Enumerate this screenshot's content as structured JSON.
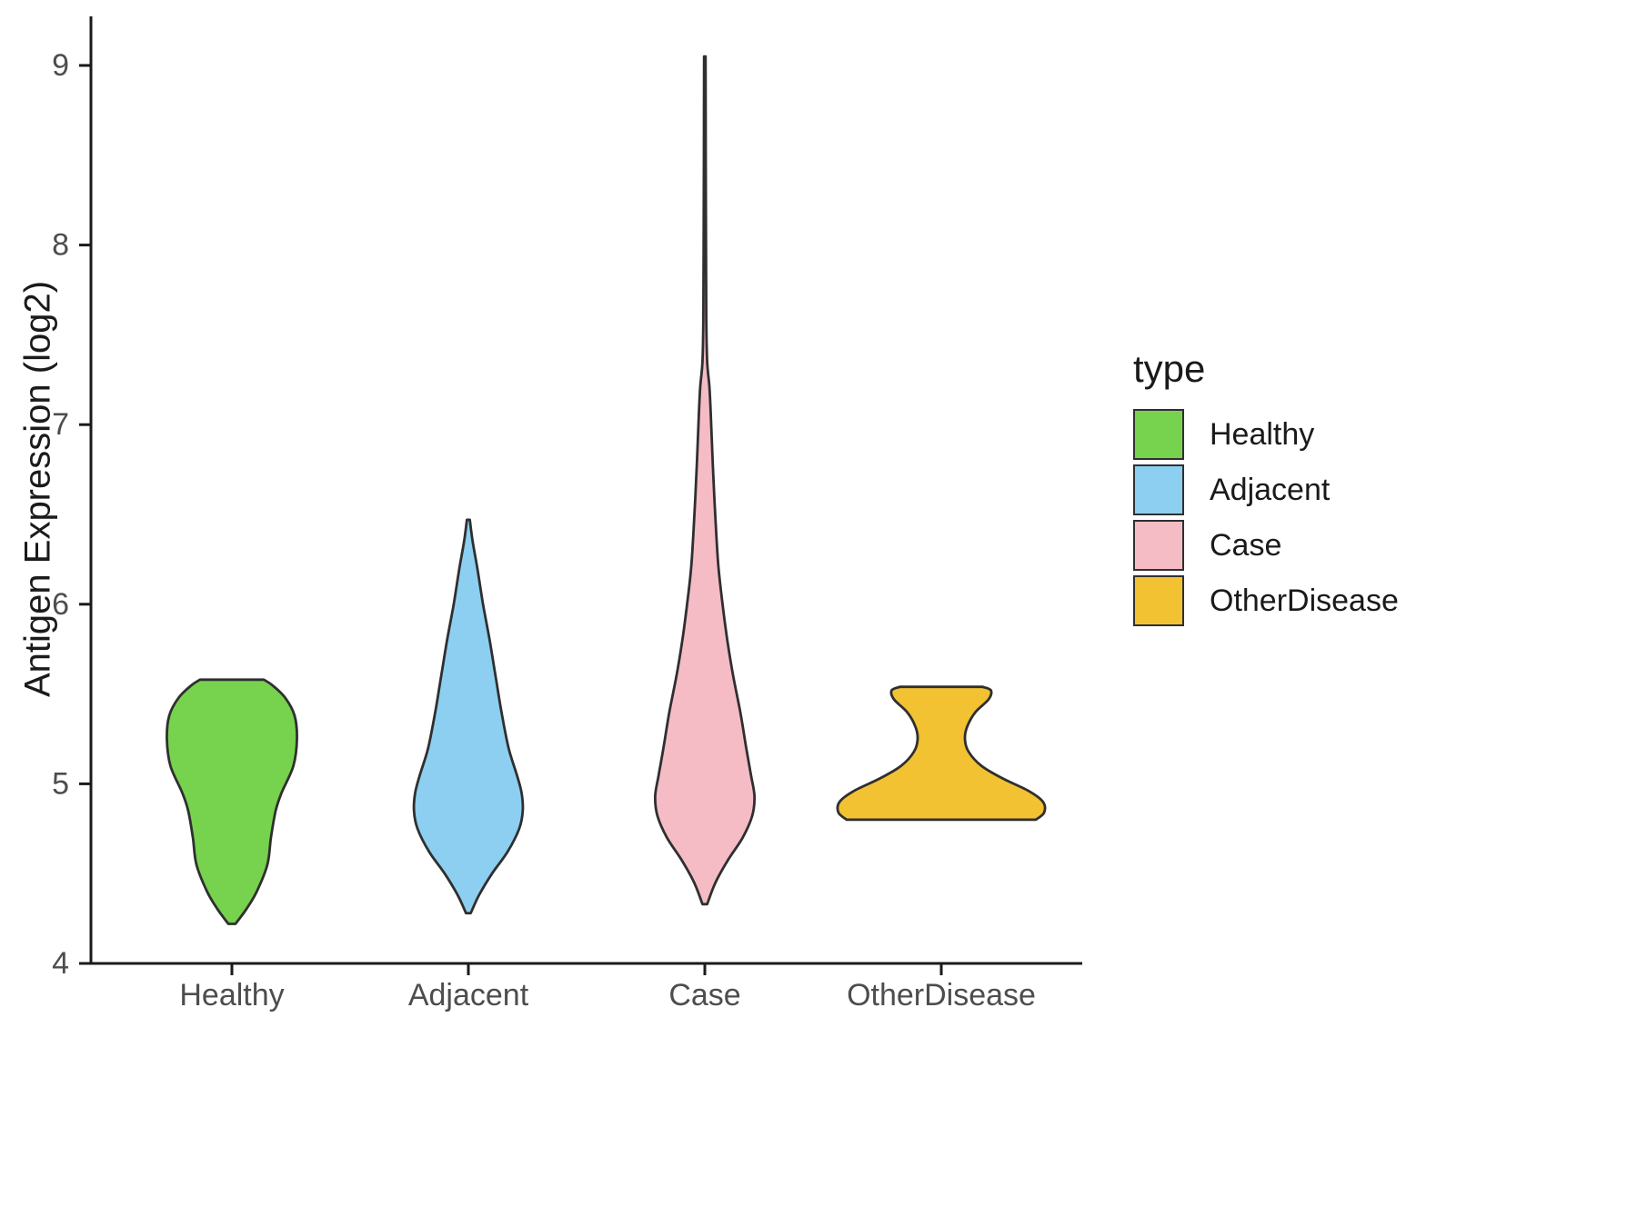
{
  "chart_data": {
    "type": "violin",
    "title": "",
    "xlabel": "",
    "ylabel": "Antigen Expression (log2)",
    "ylim": [
      4,
      9.2
    ],
    "yticks": [
      4,
      5,
      6,
      7,
      8,
      9
    ],
    "categories": [
      "Healthy",
      "Adjacent",
      "Case",
      "OtherDisease"
    ],
    "legend": {
      "title": "type",
      "position": "right",
      "entries": [
        {
          "label": "Healthy",
          "color": "#77D24E"
        },
        {
          "label": "Adjacent",
          "color": "#8CCFF0"
        },
        {
          "label": "Case",
          "color": "#F5BCC6"
        },
        {
          "label": "OtherDisease",
          "color": "#F2C233"
        }
      ]
    },
    "style": {
      "outline": "#2f2f2f",
      "axis_color": "#1a1a1a",
      "tick_label_color": "#4d4d4d",
      "grid": "off",
      "background": "#ffffff"
    },
    "series": [
      {
        "name": "Healthy",
        "color": "#77D24E",
        "range": [
          4.22,
          5.58
        ],
        "profile": [
          [
            4.22,
            0.015
          ],
          [
            4.3,
            0.06
          ],
          [
            4.4,
            0.105
          ],
          [
            4.55,
            0.15
          ],
          [
            4.7,
            0.165
          ],
          [
            4.85,
            0.185
          ],
          [
            4.95,
            0.21
          ],
          [
            5.1,
            0.26
          ],
          [
            5.25,
            0.275
          ],
          [
            5.38,
            0.265
          ],
          [
            5.48,
            0.225
          ],
          [
            5.55,
            0.17
          ],
          [
            5.58,
            0.135
          ]
        ]
      },
      {
        "name": "Adjacent",
        "color": "#8CCFF0",
        "range": [
          4.28,
          6.47
        ],
        "profile": [
          [
            4.28,
            0.01
          ],
          [
            4.38,
            0.045
          ],
          [
            4.5,
            0.1
          ],
          [
            4.62,
            0.165
          ],
          [
            4.75,
            0.215
          ],
          [
            4.85,
            0.23
          ],
          [
            4.95,
            0.225
          ],
          [
            5.05,
            0.205
          ],
          [
            5.2,
            0.17
          ],
          [
            5.4,
            0.14
          ],
          [
            5.6,
            0.115
          ],
          [
            5.8,
            0.09
          ],
          [
            6.0,
            0.062
          ],
          [
            6.2,
            0.038
          ],
          [
            6.35,
            0.018
          ],
          [
            6.47,
            0.006
          ]
        ]
      },
      {
        "name": "Case",
        "color": "#F5BCC6",
        "range": [
          4.33,
          9.05
        ],
        "profile": [
          [
            4.33,
            0.01
          ],
          [
            4.45,
            0.045
          ],
          [
            4.58,
            0.1
          ],
          [
            4.7,
            0.16
          ],
          [
            4.82,
            0.2
          ],
          [
            4.93,
            0.21
          ],
          [
            5.05,
            0.195
          ],
          [
            5.2,
            0.175
          ],
          [
            5.4,
            0.15
          ],
          [
            5.6,
            0.12
          ],
          [
            5.8,
            0.095
          ],
          [
            6.0,
            0.075
          ],
          [
            6.2,
            0.058
          ],
          [
            6.4,
            0.048
          ],
          [
            6.6,
            0.04
          ],
          [
            6.8,
            0.033
          ],
          [
            7.0,
            0.027
          ],
          [
            7.2,
            0.02
          ],
          [
            7.35,
            0.01
          ],
          [
            7.6,
            0.006
          ],
          [
            8.0,
            0.005
          ],
          [
            8.5,
            0.004
          ],
          [
            9.05,
            0.003
          ]
        ]
      },
      {
        "name": "OtherDisease",
        "color": "#F2C233",
        "range": [
          4.8,
          5.54
        ],
        "profile": [
          [
            4.8,
            0.4
          ],
          [
            4.84,
            0.435
          ],
          [
            4.9,
            0.43
          ],
          [
            4.96,
            0.37
          ],
          [
            5.03,
            0.26
          ],
          [
            5.1,
            0.17
          ],
          [
            5.18,
            0.115
          ],
          [
            5.25,
            0.1
          ],
          [
            5.32,
            0.11
          ],
          [
            5.4,
            0.145
          ],
          [
            5.47,
            0.2
          ],
          [
            5.52,
            0.21
          ],
          [
            5.54,
            0.175
          ]
        ]
      }
    ]
  }
}
